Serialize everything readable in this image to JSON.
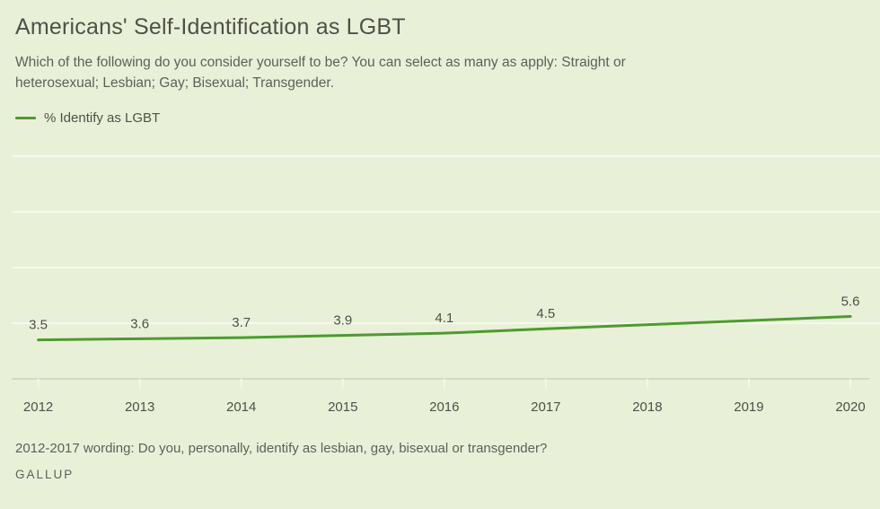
{
  "header": {
    "title": "Americans' Self-Identification as LGBT",
    "subtitle_lines": [
      "Which of the following do you consider yourself to be? You can select as many as apply: Straight or",
      "heterosexual; Lesbian; Gay; Bisexual; Transgender."
    ]
  },
  "legend": {
    "label": "% Identify as LGBT"
  },
  "chart_data": {
    "type": "line",
    "title": "Americans' Self-Identification as LGBT",
    "xlabel": "",
    "ylabel": "",
    "x_ticks": [
      2012,
      2013,
      2014,
      2015,
      2016,
      2017,
      2018,
      2019,
      2020
    ],
    "ylim": [
      0,
      21.5
    ],
    "y_gridlines": [
      5,
      10,
      15,
      20
    ],
    "grid": "horizontal gridlines only, no y-axis tick labels",
    "legend_position": "top-left",
    "data_labels": true,
    "series": [
      {
        "name": "% Identify as LGBT",
        "points": [
          {
            "x": 2012,
            "y": 3.5
          },
          {
            "x": 2013,
            "y": 3.6
          },
          {
            "x": 2014,
            "y": 3.7
          },
          {
            "x": 2015,
            "y": 3.9
          },
          {
            "x": 2016,
            "y": 4.1
          },
          {
            "x": 2017,
            "y": 4.5
          },
          {
            "x": 2020,
            "y": 5.6
          }
        ]
      }
    ],
    "years_without_data_points": [
      2018,
      2019
    ]
  },
  "footer": {
    "note": "2012-2017 wording: Do you, personally, identify as lesbian, gay, bisexual or transgender?",
    "source": "GALLUP"
  },
  "colors": {
    "background": "#e9f0d8",
    "line_green": "#4d9b30",
    "gridline": "#f6f9ec",
    "axis": "#d4d9c7",
    "tick": "#f3f7e7",
    "text_dark": "#4e5147",
    "text_muted": "#5e6156"
  }
}
